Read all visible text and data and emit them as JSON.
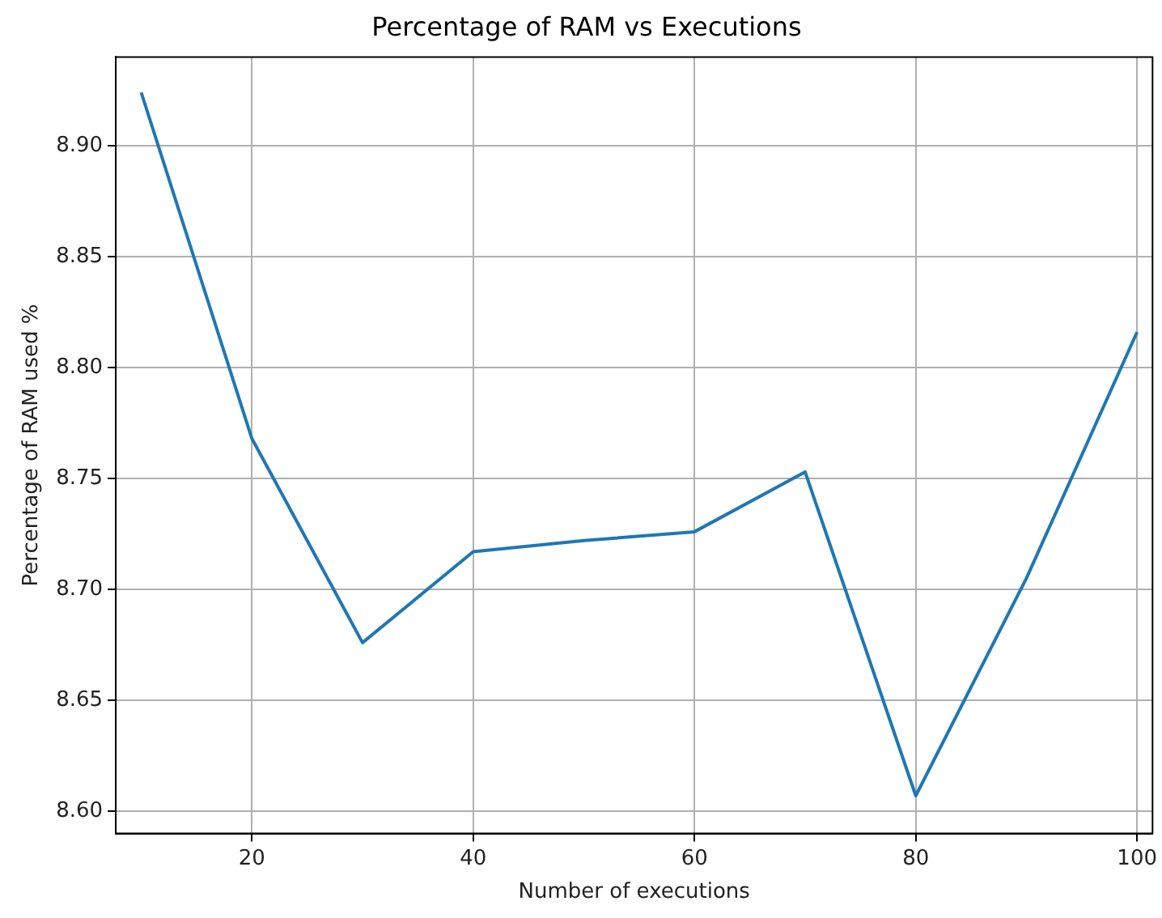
{
  "chart_data": {
    "type": "line",
    "title": "Percentage of RAM vs Executions",
    "xlabel": "Number of executions",
    "ylabel": "Percentage of RAM used %",
    "x": [
      10,
      20,
      30,
      40,
      50,
      60,
      70,
      80,
      90,
      100
    ],
    "series": [
      {
        "color": "#1f77b4",
        "values": [
          8.924,
          8.768,
          8.676,
          8.717,
          8.722,
          8.726,
          8.753,
          8.607,
          8.705,
          8.816
        ]
      }
    ],
    "xlim": [
      7.7,
      101.4
    ],
    "xticks": [
      20,
      40,
      60,
      80,
      100
    ],
    "ylim": [
      8.59,
      8.94
    ],
    "yticks": [
      {
        "value": 8.6,
        "label": "8.60"
      },
      8.65,
      {
        "value": 8.7,
        "label": "8.70"
      },
      8.75,
      {
        "value": 8.8,
        "label": "8.80"
      },
      8.85,
      {
        "value": 8.9,
        "label": "8.90"
      }
    ],
    "grid": true,
    "marker": "none",
    "line_style": "solid"
  }
}
